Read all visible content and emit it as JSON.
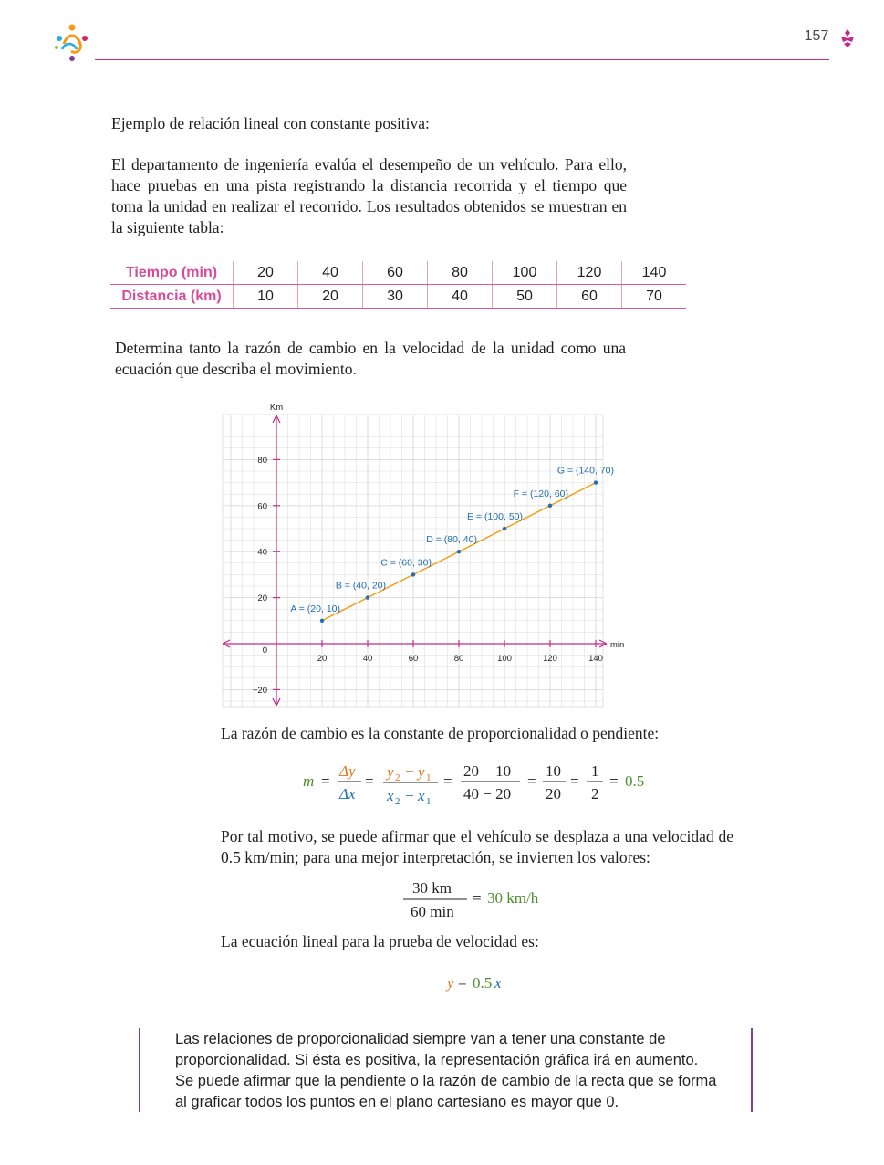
{
  "header": {
    "page_number": "157"
  },
  "intro": {
    "label": "Ejemplo de relación lineal con constante positiva:",
    "text": "El departamento de ingeniería evalúa el desempeño de un vehículo. Para ello, hace pruebas en una pista registrando la distancia recorrida y el tiempo que toma la unidad en realizar el recorrido. Los resultados obtenidos se muestran en la siguiente tabla:"
  },
  "table": {
    "rows": [
      {
        "header": "Tiempo (min)",
        "cells": [
          "20",
          "40",
          "60",
          "80",
          "100",
          "120",
          "140"
        ]
      },
      {
        "header": "Distancia (km)",
        "cells": [
          "10",
          "20",
          "30",
          "40",
          "50",
          "60",
          "70"
        ]
      }
    ]
  },
  "task": {
    "text": "Determina tanto la razón de cambio en la velocidad de la unidad como una ecuación que describa el movimiento."
  },
  "chart_data": {
    "type": "line",
    "xlabel": "min",
    "ylabel": "Km",
    "xlim": [
      -10,
      150
    ],
    "ylim": [
      -25,
      95
    ],
    "x_ticks": [
      "20",
      "40",
      "60",
      "80",
      "100",
      "120",
      "140"
    ],
    "y_ticks": [
      "80",
      "60",
      "40",
      "20",
      "0",
      "−20"
    ],
    "series": [
      {
        "color": "#f39c12",
        "points": [
          {
            "label": "A = (20, 10)",
            "x": 20,
            "y": 10
          },
          {
            "label": "B = (40, 20)",
            "x": 40,
            "y": 20
          },
          {
            "label": "C = (60, 30)",
            "x": 60,
            "y": 30
          },
          {
            "label": "D = (80, 40)",
            "x": 80,
            "y": 40
          },
          {
            "label": "E = (100, 50)",
            "x": 100,
            "y": 50
          },
          {
            "label": "F = (120, 60)",
            "x": 120,
            "y": 60
          },
          {
            "label": "G = (140, 70)",
            "x": 140,
            "y": 70
          }
        ]
      }
    ],
    "grid": true,
    "colors": {
      "axis": "#c5298c",
      "grid": "#d9d9d9",
      "points": "#1f6fb2",
      "labels": "#1f6fb2"
    }
  },
  "rate": {
    "text": "La razón de cambio es la constante de proporcionalidad o pendiente:",
    "m": "m",
    "eq": "=",
    "dy": "Δy",
    "dx": "Δx",
    "y2": "y",
    "y2_sub": "2",
    "y1": "y",
    "y1_sub": "1",
    "x2": "x",
    "x2_sub": "2",
    "x1": "x",
    "x1_sub": "1",
    "minus": "−",
    "num1": "20 − 10",
    "den1": "40 − 20",
    "num2": "10",
    "den2": "20",
    "num3": "1",
    "den3": "2",
    "result": "0.5"
  },
  "speed": {
    "text": "Por tal motivo, se puede afirmar que el vehículo se desplaza a una velocidad de 0.5 km/min; para una mejor interpretación, se invierten los valores:",
    "num": "30 km",
    "den": "60 min",
    "eq": "=",
    "result": "30 km/h"
  },
  "equation": {
    "label": "La ecuación lineal para la prueba de velocidad es:",
    "y": "y",
    "eq": "=",
    "coef": "0.5",
    "x": "x"
  },
  "note": {
    "text": "Las relaciones de proporcionalidad siempre van a tener una constante de proporcionalidad. Si ésta es positiva, la representación gráfica irá en aumento. Se puede afirmar que la pendiente o la razón de cambio de la recta que se forma al graficar todos los puntos en el plano cartesiano es mayor que 0."
  },
  "colors": {
    "magenta": "#c5298c",
    "pink_text": "#d64c9a",
    "green": "#4d8c2b",
    "orange": "#e0731c",
    "blue": "#1f6fb2",
    "purple": "#7f3f98"
  }
}
